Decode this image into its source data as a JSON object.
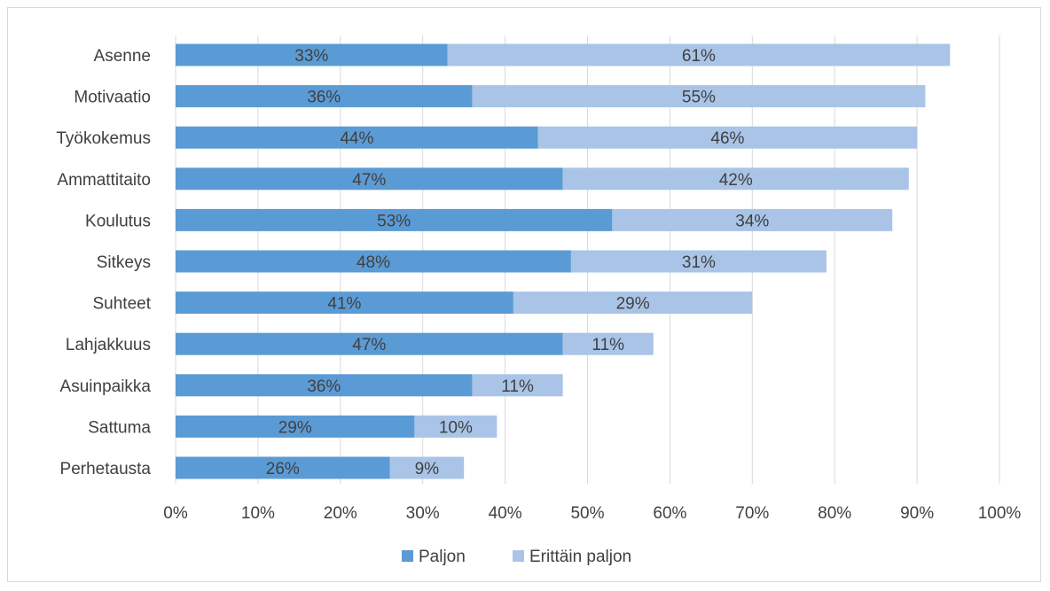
{
  "chart_data": {
    "type": "bar",
    "orientation": "horizontal",
    "stacked": true,
    "categories": [
      "Asenne",
      "Motivaatio",
      "Työkokemus",
      "Ammattitaito",
      "Koulutus",
      "Sitkeys",
      "Suhteet",
      "Lahjakkuus",
      "Asuinpaikka",
      "Sattuma",
      "Perhetausta"
    ],
    "series": [
      {
        "name": "Paljon",
        "color": "#5b9bd5",
        "values": [
          33,
          36,
          44,
          47,
          53,
          48,
          41,
          47,
          36,
          29,
          26
        ]
      },
      {
        "name": "Erittäin paljon",
        "color": "#a9c4e7",
        "values": [
          61,
          55,
          46,
          42,
          34,
          31,
          29,
          11,
          11,
          10,
          9
        ]
      }
    ],
    "value_labels_suffix": "%",
    "xlim": [
      0,
      100
    ],
    "xticks": [
      "0%",
      "10%",
      "20%",
      "30%",
      "40%",
      "50%",
      "60%",
      "70%",
      "80%",
      "90%",
      "100%"
    ],
    "grid": "vertical",
    "legend": "bottom",
    "title": "",
    "xlabel": "",
    "ylabel": ""
  }
}
